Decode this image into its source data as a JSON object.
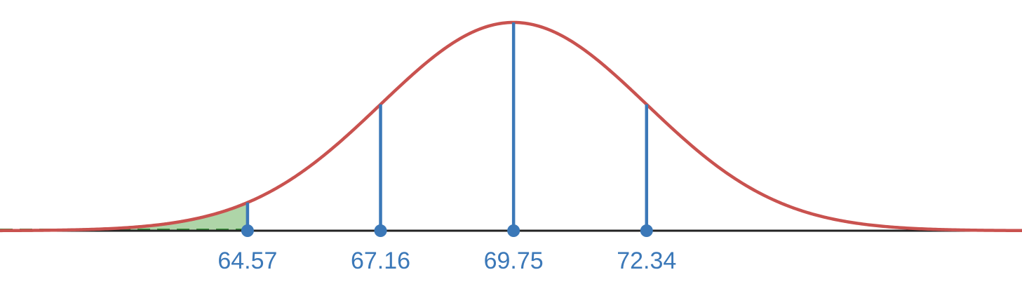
{
  "chart_data": {
    "type": "area",
    "distribution": "normal",
    "mean": 69.75,
    "sd": 2.59,
    "x_range": [
      59.75,
      79.65
    ],
    "marked_values": [
      64.57,
      67.16,
      69.75,
      72.34
    ],
    "tick_labels": [
      "64.57",
      "67.16",
      "69.75",
      "72.34"
    ],
    "shaded_region": {
      "from": 59.75,
      "to": 64.57,
      "side": "left"
    },
    "title": "",
    "xlabel": "",
    "ylabel": "",
    "grid": false,
    "legend": "none",
    "colors": {
      "curve": "#c9524f",
      "markers": "#3b78b8",
      "shade_fill": "#aed5a8",
      "shade_edge": "#3a8f3a",
      "axis": "#222222"
    }
  }
}
